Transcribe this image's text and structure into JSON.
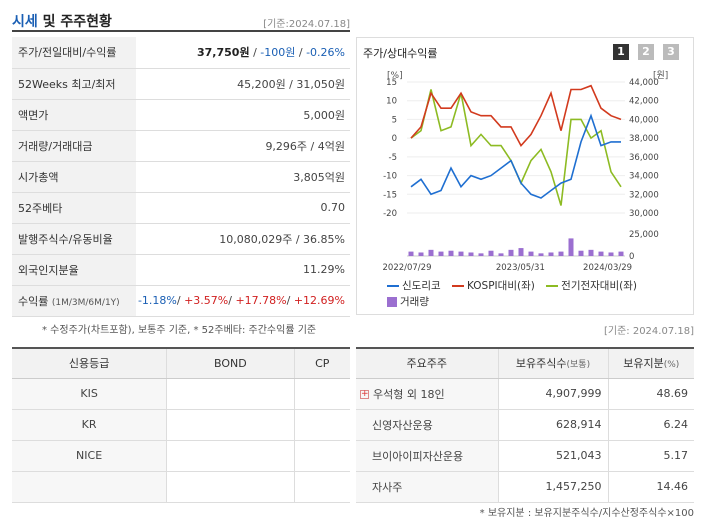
{
  "header": {
    "title_part1": "시세",
    "title_part2": " 및 주주현황",
    "date": "[기준:2024.07.18]"
  },
  "info": [
    {
      "label": "주가/전일대비/수익률",
      "price": "37,750원",
      "change": "-100원",
      "rate": "-0.26%"
    },
    {
      "label": "52Weeks 최고/최저",
      "value": "45,200원 / 31,050원"
    },
    {
      "label": "액면가",
      "value": "5,000원"
    },
    {
      "label": "거래량/거래대금",
      "value": "9,296주 / 4억원"
    },
    {
      "label": "시가총액",
      "value": "3,805억원"
    },
    {
      "label": "52주베타",
      "value": "0.70"
    },
    {
      "label": "발행주식수/유동비율",
      "value": "10,080,029주 / 36.85%"
    },
    {
      "label": "외국인지분율",
      "value": "11.29%"
    },
    {
      "label": "수익률",
      "label_sub": "(1M/3M/6M/1Y)",
      "r1": "-1.18%",
      "r2": "+3.57%",
      "r3": "+17.78%",
      "r4": "+12.69%"
    }
  ],
  "note1": "* 수정주가(차트포함), 보통주 기준, * 52주베타: 주간수익률 기준",
  "chart": {
    "title": "주가/상대수익률",
    "pages": [
      "1",
      "2",
      "3"
    ],
    "left_unit": "[%]",
    "right_unit": "[원]",
    "colors": {
      "sindoh": "#1f6fd1",
      "kospi": "#d23a1e",
      "samsung": "#8dbb23",
      "volume": "#9b6fd0"
    }
  },
  "chart_data": {
    "type": "line",
    "x_ticks": [
      "2022/07/29",
      "2023/05/31",
      "2024/03/29"
    ],
    "y_left_ticks": [
      "15",
      "10",
      "5",
      "0",
      "-5",
      "-10",
      "-15",
      "-20"
    ],
    "y_right_ticks": [
      "44,000",
      "42,000",
      "40,000",
      "38,000",
      "36,000",
      "34,000",
      "32,000",
      "30,000"
    ],
    "y_left_range": [
      -20,
      15
    ],
    "volume_ticks": [
      "25,000",
      "0"
    ],
    "volume_range": [
      0,
      25000
    ],
    "series": [
      {
        "name": "신도리코",
        "values": [
          -13,
          -11,
          -15,
          -14,
          -8,
          -13,
          -10,
          -11,
          -10,
          -8,
          -6,
          -12,
          -15,
          -16,
          -14,
          -12,
          -11,
          -1,
          6,
          -2,
          -1,
          -1
        ]
      },
      {
        "name": "KOSPI대비(좌)",
        "values": [
          0,
          3,
          12,
          8,
          8,
          12,
          7,
          6,
          6,
          3,
          3,
          -2,
          1,
          6,
          12,
          2,
          13,
          13,
          14,
          8,
          6,
          5
        ]
      },
      {
        "name": "전기전자대비(좌)",
        "values": [
          0,
          2,
          13,
          2,
          3,
          12,
          -2,
          1,
          -2,
          -2,
          -6,
          -12,
          -6,
          -3,
          -9,
          -18,
          5,
          5,
          0,
          2,
          -9,
          -13
        ]
      },
      {
        "name": "거래량",
        "values": [
          5000,
          4000,
          7000,
          5000,
          6000,
          5000,
          4000,
          3000,
          6000,
          3000,
          7000,
          9000,
          5000,
          3000,
          4000,
          5000,
          20000,
          6000,
          7000,
          5000,
          4000,
          5000
        ]
      }
    ]
  },
  "date2": "[기준: 2024.07.18]",
  "credit": {
    "headers": [
      "신용등급",
      "BOND",
      "CP"
    ],
    "rows": [
      {
        "agency": "KIS",
        "bond": "",
        "cp": ""
      },
      {
        "agency": "KR",
        "bond": "",
        "cp": ""
      },
      {
        "agency": "NICE",
        "bond": "",
        "cp": ""
      },
      {
        "agency": "",
        "bond": "",
        "cp": ""
      }
    ]
  },
  "holders": {
    "h1": "주요주주",
    "h2": "보유주식수",
    "h2_sub": "(보통)",
    "h3": "보유지분",
    "h3_sub": "(%)",
    "rows": [
      {
        "name": "우석형 외 18인",
        "shares": "4,907,999",
        "pct": "48.69"
      },
      {
        "name": "신영자산운용",
        "shares": "628,914",
        "pct": "6.24"
      },
      {
        "name": "브이아이피자산운용",
        "shares": "521,043",
        "pct": "5.17"
      },
      {
        "name": "자사주",
        "shares": "1,457,250",
        "pct": "14.46"
      }
    ]
  },
  "note2": "* 보유지분 : 보유지분주식수/지수산정주식수×100"
}
